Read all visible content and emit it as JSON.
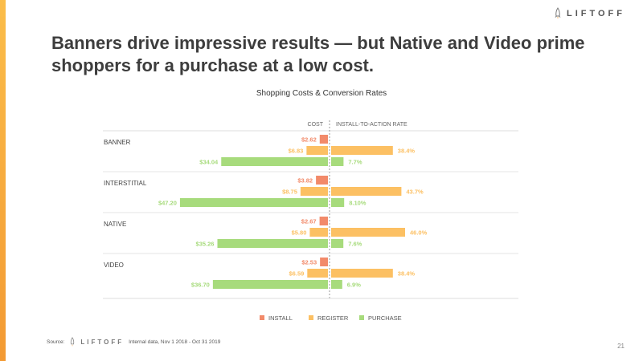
{
  "brand": {
    "name": "LIFTOFF"
  },
  "headline": "Banners drive impressive results — but Native and Video prime shoppers for a purchase at a low cost.",
  "footer": {
    "source_label": "Source:",
    "note": "Internal data, Nov 1 2018 - Oct 31 2019"
  },
  "page_number": "21",
  "colors": {
    "install": "#f28a6a",
    "register": "#fcc063",
    "purchase": "#a7db7c"
  },
  "chart_data": {
    "type": "bar",
    "title": "Shopping Costs & Conversion Rates",
    "columns": {
      "cost": "COST",
      "rate": "INSTALL-TO-ACTION RATE"
    },
    "legend": [
      "INSTALL",
      "REGISTER",
      "PURCHASE"
    ],
    "legend_position": "bottom",
    "groups": [
      {
        "name": "BANNER",
        "cost": [
          2.62,
          6.83,
          34.04
        ],
        "cost_labels": [
          "$2.62",
          "$6.83",
          "$34.04"
        ],
        "rate": [
          null,
          38.4,
          7.7
        ],
        "rate_labels": [
          "",
          "38.4%",
          "7.7%"
        ]
      },
      {
        "name": "INTERSTITIAL",
        "cost": [
          3.82,
          8.75,
          47.2
        ],
        "cost_labels": [
          "$3.82",
          "$8.75",
          "$47.20"
        ],
        "rate": [
          null,
          43.7,
          8.1
        ],
        "rate_labels": [
          "",
          "43.7%",
          "8.10%"
        ]
      },
      {
        "name": "NATIVE",
        "cost": [
          2.67,
          5.8,
          35.26
        ],
        "cost_labels": [
          "$2.67",
          "$5.80",
          "$35.26"
        ],
        "rate": [
          null,
          46.0,
          7.6
        ],
        "rate_labels": [
          "",
          "46.0%",
          "7.6%"
        ]
      },
      {
        "name": "VIDEO",
        "cost": [
          2.53,
          6.59,
          36.7
        ],
        "cost_labels": [
          "$2.53",
          "$6.59",
          "$36.70"
        ],
        "rate": [
          null,
          38.4,
          6.9
        ],
        "rate_labels": [
          "",
          "38.4%",
          "6.9%"
        ]
      }
    ]
  }
}
